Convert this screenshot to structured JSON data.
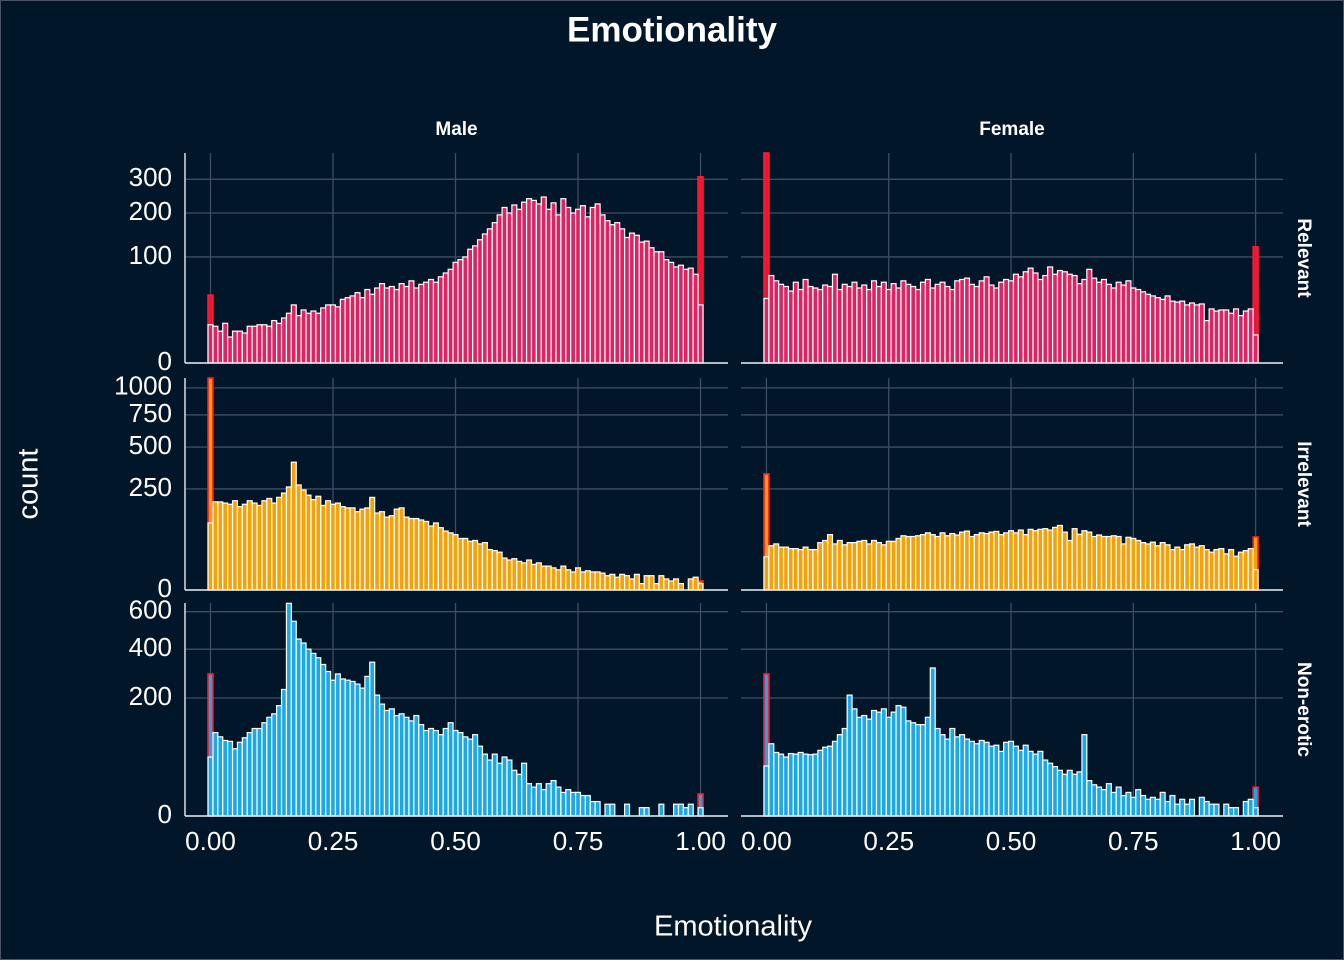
{
  "chart_data": {
    "type": "histogram",
    "title": "Emotionality",
    "x_label": "Emotionality",
    "y_label": "count",
    "yscale": "sqrt",
    "grid": true,
    "xlim": [
      -0.052,
      1.056
    ],
    "xticks": [
      {
        "value": 0,
        "label": "0.00"
      },
      {
        "value": 0.25,
        "label": "0.25"
      },
      {
        "value": 0.5,
        "label": "0.50"
      },
      {
        "value": 0.75,
        "label": "0.75"
      },
      {
        "value": 1,
        "label": "1.00"
      }
    ],
    "bins": [
      -0.005,
      0.005,
      0.015,
      0.025,
      0.035,
      0.045,
      0.055,
      0.065,
      0.075,
      0.085,
      0.095,
      0.105,
      0.115,
      0.125,
      0.135,
      0.145,
      0.155,
      0.165,
      0.175,
      0.185,
      0.195,
      0.205,
      0.215,
      0.225,
      0.235,
      0.245,
      0.255,
      0.265,
      0.275,
      0.285,
      0.295,
      0.305,
      0.315,
      0.325,
      0.335,
      0.345,
      0.355,
      0.365,
      0.375,
      0.385,
      0.395,
      0.405,
      0.415,
      0.425,
      0.435,
      0.445,
      0.455,
      0.465,
      0.475,
      0.485,
      0.495,
      0.505,
      0.515,
      0.525,
      0.535,
      0.545,
      0.555,
      0.565,
      0.575,
      0.585,
      0.595,
      0.605,
      0.615,
      0.625,
      0.635,
      0.645,
      0.655,
      0.665,
      0.675,
      0.685,
      0.695,
      0.705,
      0.715,
      0.725,
      0.735,
      0.745,
      0.755,
      0.765,
      0.775,
      0.785,
      0.795,
      0.805,
      0.815,
      0.825,
      0.835,
      0.845,
      0.855,
      0.865,
      0.875,
      0.885,
      0.895,
      0.905,
      0.915,
      0.925,
      0.935,
      0.945,
      0.955,
      0.965,
      0.975,
      0.985,
      0.995,
      1.005
    ],
    "facet_columns": [
      "Male",
      "Female"
    ],
    "edge_color": "#ff1a2e",
    "facet_rows": [
      {
        "name": "Relevant",
        "color": "#dd2462",
        "edge_fill": "#e8173a",
        "ylim": [
          0,
          392
        ],
        "yticks": [
          0,
          100,
          200,
          300
        ],
        "counts": [
          [
            13,
            12,
            9,
            14,
            6,
            9,
            9,
            8,
            12,
            12,
            13,
            13,
            12,
            16,
            14,
            18,
            22,
            30,
            20,
            25,
            22,
            24,
            22,
            27,
            30,
            30,
            28,
            36,
            38,
            40,
            44,
            38,
            48,
            42,
            50,
            56,
            50,
            52,
            48,
            56,
            52,
            60,
            50,
            55,
            58,
            62,
            58,
            66,
            72,
            78,
            90,
            95,
            100,
            115,
            122,
            135,
            148,
            160,
            175,
            195,
            215,
            200,
            222,
            210,
            230,
            240,
            235,
            225,
            245,
            210,
            228,
            195,
            240,
            215,
            200,
            210,
            220,
            190,
            215,
            225,
            195,
            180,
            170,
            175,
            160,
            140,
            150,
            145,
            130,
            132,
            118,
            110,
            110,
            95,
            90,
            82,
            85,
            78,
            80,
            70,
            30
          ],
          [
            37,
            68,
            60,
            55,
            52,
            46,
            58,
            48,
            62,
            52,
            50,
            48,
            54,
            52,
            70,
            48,
            55,
            52,
            58,
            50,
            54,
            48,
            60,
            52,
            58,
            48,
            56,
            50,
            60,
            55,
            52,
            48,
            58,
            62,
            50,
            55,
            58,
            52,
            48,
            60,
            62,
            64,
            55,
            52,
            60,
            66,
            54,
            50,
            58,
            62,
            60,
            70,
            66,
            74,
            80,
            72,
            62,
            68,
            82,
            70,
            76,
            74,
            70,
            68,
            56,
            62,
            78,
            64,
            58,
            62,
            55,
            50,
            58,
            54,
            60,
            50,
            48,
            45,
            42,
            40,
            38,
            36,
            40,
            34,
            33,
            34,
            30,
            32,
            30,
            31,
            16,
            26,
            24,
            25,
            25,
            22,
            26,
            20,
            24,
            26,
            7
          ]
        ],
        "edge_counts": [
          [
            41,
            308
          ],
          [
            392,
            120
          ]
        ]
      },
      {
        "name": "Irrelevant",
        "color": "#f4a20a",
        "edge_fill": "#f4a20a",
        "ylim": [
          0,
          1100
        ],
        "yticks": [
          0,
          250,
          500,
          750,
          1000
        ],
        "counts": [
          [
            110,
            190,
            190,
            185,
            180,
            195,
            170,
            180,
            195,
            185,
            175,
            195,
            205,
            185,
            210,
            230,
            260,
            400,
            270,
            245,
            220,
            200,
            215,
            175,
            195,
            180,
            185,
            170,
            165,
            165,
            150,
            160,
            165,
            210,
            145,
            150,
            130,
            135,
            160,
            165,
            130,
            125,
            125,
            120,
            115,
            100,
            110,
            95,
            85,
            80,
            75,
            65,
            65,
            58,
            60,
            52,
            55,
            40,
            38,
            35,
            25,
            22,
            24,
            20,
            18,
            22,
            16,
            18,
            14,
            14,
            12,
            10,
            14,
            10,
            8,
            12,
            8,
            9,
            8,
            8,
            7,
            5,
            6,
            4,
            6,
            5,
            3,
            6,
            1,
            5,
            5,
            1,
            5,
            3,
            2,
            3,
            1,
            0,
            3,
            4,
            1
          ],
          [
            27,
            48,
            52,
            45,
            45,
            42,
            42,
            40,
            45,
            40,
            40,
            55,
            60,
            75,
            52,
            60,
            50,
            55,
            55,
            58,
            60,
            52,
            60,
            55,
            50,
            58,
            58,
            65,
            72,
            70,
            70,
            72,
            75,
            80,
            75,
            70,
            80,
            72,
            78,
            74,
            82,
            85,
            70,
            75,
            80,
            78,
            82,
            84,
            75,
            80,
            86,
            80,
            88,
            75,
            90,
            86,
            90,
            92,
            88,
            96,
            102,
            82,
            60,
            92,
            76,
            86,
            82,
            70,
            74,
            70,
            70,
            72,
            70,
            52,
            68,
            65,
            60,
            55,
            52,
            56,
            48,
            55,
            50,
            40,
            45,
            40,
            50,
            52,
            45,
            48,
            40,
            35,
            40,
            42,
            32,
            40,
            28,
            35,
            38,
            42,
            10
          ]
        ],
        "edge_counts": [
          [
            1100,
            2
          ],
          [
            330,
            69
          ]
        ]
      },
      {
        "name": "Non-erotic",
        "color": "#1ba8e6",
        "edge_fill": "#1ba8e6",
        "ylim": [
          0,
          652
        ],
        "yticks": [
          0,
          200,
          400,
          600
        ],
        "counts": [
          [
            50,
            100,
            90,
            82,
            80,
            65,
            78,
            88,
            100,
            110,
            110,
            125,
            140,
            150,
            175,
            230,
            650,
            545,
            450,
            430,
            400,
            380,
            360,
            330,
            300,
            265,
            290,
            270,
            265,
            260,
            250,
            235,
            280,
            340,
            210,
            180,
            160,
            165,
            145,
            150,
            140,
            130,
            145,
            120,
            105,
            110,
            105,
            95,
            110,
            125,
            105,
            100,
            90,
            85,
            95,
            70,
            55,
            45,
            55,
            40,
            50,
            45,
            30,
            25,
            40,
            15,
            12,
            15,
            10,
            15,
            18,
            12,
            8,
            10,
            8,
            8,
            6,
            6,
            3,
            3,
            0,
            2,
            2,
            0,
            0,
            2,
            0,
            0,
            1,
            1,
            0,
            0,
            2,
            0,
            0,
            2,
            2,
            1,
            2,
            0,
            1
          ],
          [
            36,
            75,
            58,
            55,
            50,
            56,
            55,
            58,
            55,
            54,
            55,
            62,
            68,
            70,
            80,
            95,
            110,
            210,
            165,
            140,
            145,
            135,
            160,
            155,
            165,
            140,
            155,
            175,
            170,
            130,
            125,
            120,
            120,
            140,
            315,
            110,
            95,
            85,
            110,
            90,
            95,
            85,
            80,
            75,
            82,
            78,
            70,
            72,
            60,
            78,
            80,
            70,
            62,
            72,
            60,
            55,
            60,
            45,
            40,
            35,
            30,
            25,
            30,
            25,
            28,
            95,
            18,
            14,
            12,
            10,
            15,
            8,
            12,
            6,
            8,
            5,
            10,
            6,
            4,
            5,
            4,
            8,
            3,
            6,
            2,
            4,
            2,
            4,
            0,
            5,
            3,
            2,
            2,
            0,
            2,
            1,
            1,
            0,
            3,
            4,
            1
          ]
        ],
        "edge_counts": [
          [
            290,
            7
          ],
          [
            290,
            12
          ]
        ]
      }
    ]
  }
}
